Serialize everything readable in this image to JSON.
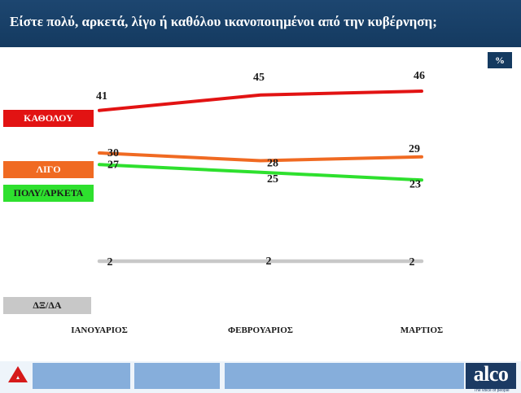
{
  "header": {
    "title": "Είστε πολύ, αρκετά, λίγο ή καθόλου ικανοποιημένοι από την κυβέρνηση;"
  },
  "unit_label": "%",
  "brand": {
    "name": "alco",
    "tagline": "The voice of people"
  },
  "colors": {
    "header": "#143a60",
    "kathol": "#e21313",
    "ligo": "#f06a22",
    "poly": "#2ee02e",
    "dxda": "#c8c8c8"
  },
  "chart_data": {
    "type": "line",
    "categories": [
      "ΙΑΝΟΥΑΡΙΟΣ",
      "ΦΕΒΡΟΥΑΡΙΟΣ",
      "ΜΑΡΤΙΟΣ"
    ],
    "series": [
      {
        "name": "ΚΑΘΟΛΟΥ",
        "values": [
          41,
          45,
          46
        ],
        "color": "#e21313"
      },
      {
        "name": "ΛΙΓΟ",
        "values": [
          30,
          28,
          29
        ],
        "color": "#f06a22"
      },
      {
        "name": "ΠΟΛΥ/ΑΡΚΕΤΑ",
        "values": [
          27,
          25,
          23
        ],
        "color": "#2ee02e"
      },
      {
        "name": "ΔΞ/ΔΑ",
        "values": [
          2,
          2,
          2
        ],
        "color": "#c8c8c8"
      }
    ],
    "title": "Είστε πολύ, αρκετά, λίγο ή καθόλου ικανοποιημένοι από την κυβέρνηση;",
    "grid": false,
    "legend": "left"
  }
}
